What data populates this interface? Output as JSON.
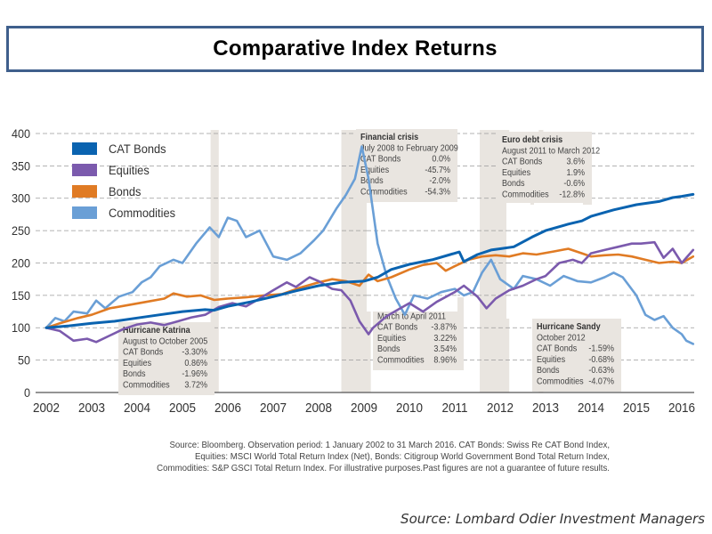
{
  "title": "Comparative Index Returns",
  "source_note": [
    "Source: Bloomberg. Observation period: 1 January 2002 to 31 March 2016. CAT Bonds: Swiss Re CAT Bond Index,",
    "Equities: MSCI World Total Return Index (Net), Bonds: Citigroup World Government Bond Total Return Index,",
    "Commodities: S&P GSCI Total Return Index. For illustrative purposes.Past figures are not a guarantee of future results."
  ],
  "credit": "Source: Lombard Odier Investment Managers",
  "colors": {
    "cat_bonds": "#0a63b0",
    "equities": "#7b5aad",
    "bonds": "#e07b24",
    "commodities": "#6a9fd6",
    "event_band": "#e9e5e0",
    "title_border": "#3f5f8c"
  },
  "chart_data": {
    "type": "line",
    "title": "Comparative Index Returns",
    "xlabel": "",
    "ylabel": "",
    "xlim": [
      2002,
      2016.25
    ],
    "ylim": [
      0,
      400
    ],
    "grid": true,
    "legend_position": "top-left",
    "x_ticks": [
      "2002",
      "2003",
      "2004",
      "2005",
      "2006",
      "2007",
      "2008",
      "2009",
      "2010",
      "2011",
      "2012",
      "2013",
      "2014",
      "2015",
      "2016"
    ],
    "y_ticks": [
      "0",
      "50",
      "100",
      "150",
      "200",
      "250",
      "300",
      "350",
      "400"
    ],
    "series": [
      {
        "name": "CAT Bonds",
        "color": "#0a63b0",
        "points": [
          [
            2002,
            100
          ],
          [
            2002.5,
            103
          ],
          [
            2003,
            107
          ],
          [
            2003.5,
            110
          ],
          [
            2004,
            115
          ],
          [
            2004.5,
            120
          ],
          [
            2005,
            125
          ],
          [
            2005.5,
            128
          ],
          [
            2005.7,
            127
          ],
          [
            2006,
            133
          ],
          [
            2006.5,
            140
          ],
          [
            2007,
            148
          ],
          [
            2007.5,
            157
          ],
          [
            2008,
            165
          ],
          [
            2008.5,
            170
          ],
          [
            2009,
            172
          ],
          [
            2009.3,
            178
          ],
          [
            2009.6,
            190
          ],
          [
            2010,
            198
          ],
          [
            2010.5,
            205
          ],
          [
            2010.9,
            213
          ],
          [
            2011.1,
            217
          ],
          [
            2011.2,
            202
          ],
          [
            2011.5,
            213
          ],
          [
            2011.8,
            220
          ],
          [
            2012,
            222
          ],
          [
            2012.3,
            225
          ],
          [
            2012.7,
            240
          ],
          [
            2013,
            250
          ],
          [
            2013.5,
            260
          ],
          [
            2013.8,
            265
          ],
          [
            2014,
            272
          ],
          [
            2014.5,
            282
          ],
          [
            2015,
            290
          ],
          [
            2015.5,
            295
          ],
          [
            2015.8,
            301
          ],
          [
            2016,
            303
          ],
          [
            2016.25,
            306
          ]
        ]
      },
      {
        "name": "Equities",
        "color": "#7b5aad",
        "points": [
          [
            2002,
            100
          ],
          [
            2002.3,
            95
          ],
          [
            2002.6,
            80
          ],
          [
            2002.9,
            83
          ],
          [
            2003.1,
            78
          ],
          [
            2003.4,
            88
          ],
          [
            2003.7,
            98
          ],
          [
            2004,
            105
          ],
          [
            2004.3,
            108
          ],
          [
            2004.6,
            104
          ],
          [
            2004.9,
            110
          ],
          [
            2005.2,
            116
          ],
          [
            2005.5,
            120
          ],
          [
            2005.8,
            132
          ],
          [
            2006.1,
            138
          ],
          [
            2006.4,
            133
          ],
          [
            2006.7,
            145
          ],
          [
            2007,
            158
          ],
          [
            2007.3,
            170
          ],
          [
            2007.5,
            163
          ],
          [
            2007.8,
            178
          ],
          [
            2008,
            172
          ],
          [
            2008.3,
            160
          ],
          [
            2008.5,
            158
          ],
          [
            2008.7,
            142
          ],
          [
            2008.9,
            110
          ],
          [
            2009.1,
            90
          ],
          [
            2009.2,
            100
          ],
          [
            2009.5,
            118
          ],
          [
            2009.8,
            130
          ],
          [
            2010,
            138
          ],
          [
            2010.3,
            125
          ],
          [
            2010.6,
            140
          ],
          [
            2011,
            155
          ],
          [
            2011.2,
            165
          ],
          [
            2011.5,
            148
          ],
          [
            2011.7,
            130
          ],
          [
            2011.9,
            145
          ],
          [
            2012.2,
            158
          ],
          [
            2012.5,
            165
          ],
          [
            2012.8,
            175
          ],
          [
            2013,
            180
          ],
          [
            2013.3,
            200
          ],
          [
            2013.6,
            205
          ],
          [
            2013.8,
            200
          ],
          [
            2014,
            215
          ],
          [
            2014.3,
            220
          ],
          [
            2014.6,
            225
          ],
          [
            2014.9,
            230
          ],
          [
            2015.1,
            230
          ],
          [
            2015.4,
            232
          ],
          [
            2015.6,
            208
          ],
          [
            2015.8,
            222
          ],
          [
            2016,
            200
          ],
          [
            2016.25,
            220
          ]
        ]
      },
      {
        "name": "Bonds",
        "color": "#e07b24",
        "points": [
          [
            2002,
            100
          ],
          [
            2002.3,
            107
          ],
          [
            2002.7,
            115
          ],
          [
            2003,
            120
          ],
          [
            2003.4,
            130
          ],
          [
            2003.8,
            135
          ],
          [
            2004.2,
            140
          ],
          [
            2004.6,
            145
          ],
          [
            2004.8,
            153
          ],
          [
            2005.1,
            148
          ],
          [
            2005.4,
            150
          ],
          [
            2005.7,
            143
          ],
          [
            2006,
            145
          ],
          [
            2006.4,
            147
          ],
          [
            2006.8,
            150
          ],
          [
            2007.2,
            152
          ],
          [
            2007.6,
            162
          ],
          [
            2008,
            170
          ],
          [
            2008.3,
            175
          ],
          [
            2008.6,
            172
          ],
          [
            2008.9,
            165
          ],
          [
            2009.1,
            182
          ],
          [
            2009.3,
            172
          ],
          [
            2009.6,
            178
          ],
          [
            2010,
            190
          ],
          [
            2010.3,
            197
          ],
          [
            2010.6,
            200
          ],
          [
            2010.8,
            188
          ],
          [
            2011,
            195
          ],
          [
            2011.3,
            205
          ],
          [
            2011.6,
            210
          ],
          [
            2011.9,
            212
          ],
          [
            2012.2,
            210
          ],
          [
            2012.5,
            215
          ],
          [
            2012.8,
            213
          ],
          [
            2013.2,
            218
          ],
          [
            2013.5,
            222
          ],
          [
            2013.8,
            215
          ],
          [
            2014,
            210
          ],
          [
            2014.3,
            212
          ],
          [
            2014.6,
            213
          ],
          [
            2014.9,
            210
          ],
          [
            2015.2,
            205
          ],
          [
            2015.5,
            200
          ],
          [
            2015.8,
            202
          ],
          [
            2016,
            200
          ],
          [
            2016.25,
            210
          ]
        ]
      },
      {
        "name": "Commodities",
        "color": "#6a9fd6",
        "points": [
          [
            2002,
            100
          ],
          [
            2002.2,
            115
          ],
          [
            2002.4,
            110
          ],
          [
            2002.6,
            125
          ],
          [
            2002.9,
            122
          ],
          [
            2003.1,
            142
          ],
          [
            2003.3,
            130
          ],
          [
            2003.6,
            148
          ],
          [
            2003.9,
            155
          ],
          [
            2004.1,
            170
          ],
          [
            2004.3,
            178
          ],
          [
            2004.5,
            195
          ],
          [
            2004.8,
            205
          ],
          [
            2005,
            200
          ],
          [
            2005.3,
            230
          ],
          [
            2005.6,
            255
          ],
          [
            2005.8,
            240
          ],
          [
            2006,
            270
          ],
          [
            2006.2,
            265
          ],
          [
            2006.4,
            240
          ],
          [
            2006.7,
            250
          ],
          [
            2007,
            210
          ],
          [
            2007.3,
            205
          ],
          [
            2007.6,
            215
          ],
          [
            2007.9,
            235
          ],
          [
            2008.1,
            250
          ],
          [
            2008.4,
            285
          ],
          [
            2008.6,
            305
          ],
          [
            2008.8,
            330
          ],
          [
            2008.95,
            380
          ],
          [
            2009.1,
            330
          ],
          [
            2009.3,
            230
          ],
          [
            2009.5,
            180
          ],
          [
            2009.7,
            145
          ],
          [
            2009.9,
            120
          ],
          [
            2010.1,
            150
          ],
          [
            2010.4,
            145
          ],
          [
            2010.7,
            155
          ],
          [
            2011,
            160
          ],
          [
            2011.2,
            150
          ],
          [
            2011.4,
            155
          ],
          [
            2011.6,
            185
          ],
          [
            2011.8,
            205
          ],
          [
            2012,
            175
          ],
          [
            2012.3,
            160
          ],
          [
            2012.5,
            180
          ],
          [
            2012.8,
            175
          ],
          [
            2013.1,
            165
          ],
          [
            2013.4,
            180
          ],
          [
            2013.7,
            172
          ],
          [
            2014,
            170
          ],
          [
            2014.3,
            178
          ],
          [
            2014.5,
            185
          ],
          [
            2014.7,
            178
          ],
          [
            2015,
            150
          ],
          [
            2015.2,
            120
          ],
          [
            2015.4,
            112
          ],
          [
            2015.6,
            118
          ],
          [
            2015.8,
            100
          ],
          [
            2016,
            90
          ],
          [
            2016.1,
            80
          ],
          [
            2016.25,
            75
          ]
        ]
      }
    ],
    "event_bands": [
      {
        "x": [
          2005.62,
          2005.8
        ]
      },
      {
        "x": [
          2008.5,
          2009.15
        ]
      },
      {
        "x": [
          2011.55,
          2012.2
        ]
      },
      {
        "x": [
          2012.85,
          2012.95
        ]
      }
    ],
    "annotations": [
      {
        "title": "Hurricane Katrina",
        "period": "August to October 2005",
        "rows": [
          {
            "label": "CAT Bonds",
            "value": "-3.30%"
          },
          {
            "label": "Equities",
            "value": "0.86%"
          },
          {
            "label": "Bonds",
            "value": "-1.96%"
          },
          {
            "label": "Commodities",
            "value": "3.72%"
          }
        ]
      },
      {
        "title": "Financial crisis",
        "period": "July 2008 to February 2009",
        "rows": [
          {
            "label": "CAT Bonds",
            "value": "0.0%"
          },
          {
            "label": "Equities",
            "value": "-45.7%"
          },
          {
            "label": "Bonds",
            "value": "-2.0%"
          },
          {
            "label": "Commodities",
            "value": "-54.3%"
          }
        ]
      },
      {
        "title": "Tohoku earthquake",
        "period": "March to April 2011",
        "rows": [
          {
            "label": "CAT Bonds",
            "value": "-3.87%"
          },
          {
            "label": "Equities",
            "value": "3.22%"
          },
          {
            "label": "Bonds",
            "value": "3.54%"
          },
          {
            "label": "Commodities",
            "value": "8.96%"
          }
        ]
      },
      {
        "title": "Euro debt crisis",
        "period": "August 2011 to March 2012",
        "rows": [
          {
            "label": "CAT Bonds",
            "value": "3.6%"
          },
          {
            "label": "Equities",
            "value": "1.9%"
          },
          {
            "label": "Bonds",
            "value": "-0.6%"
          },
          {
            "label": "Commodities",
            "value": "-12.8%"
          }
        ]
      },
      {
        "title": "Hurricane Sandy",
        "period": "October 2012",
        "rows": [
          {
            "label": "CAT Bonds",
            "value": "-1.59%"
          },
          {
            "label": "Equities",
            "value": "-0.68%"
          },
          {
            "label": "Bonds",
            "value": "-0.63%"
          },
          {
            "label": "Commodities",
            "value": "-4.07%"
          }
        ]
      }
    ]
  }
}
